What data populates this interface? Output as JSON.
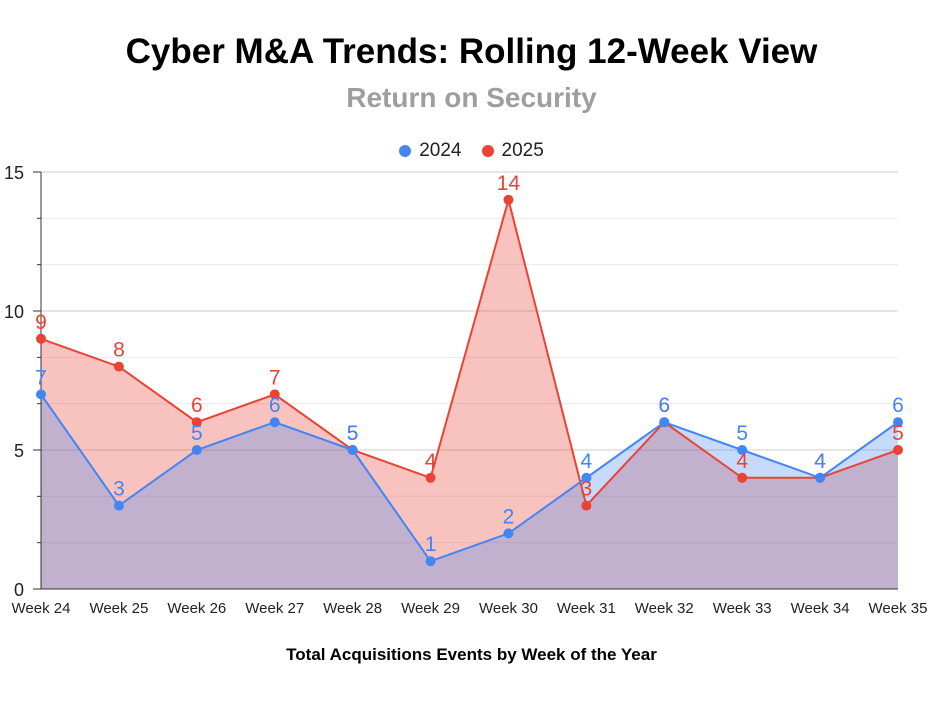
{
  "chart_data": {
    "type": "area",
    "title": "Cyber M&A Trends: Rolling 12-Week View",
    "subtitle": "Return on Security",
    "xlabel": "Total Acquisitions Events by Week of the Year",
    "ylabel": "",
    "categories": [
      "Week 24",
      "Week 25",
      "Week 26",
      "Week 27",
      "Week 28",
      "Week 29",
      "Week 30",
      "Week 31",
      "Week 32",
      "Week 33",
      "Week 34",
      "Week 35"
    ],
    "series": [
      {
        "name": "2024",
        "color": "#4285f4",
        "values": [
          7,
          3,
          5,
          6,
          5,
          1,
          2,
          4,
          6,
          5,
          4,
          6
        ]
      },
      {
        "name": "2025",
        "color": "#ea4335",
        "values": [
          9,
          8,
          6,
          7,
          5,
          4,
          14,
          3,
          6,
          4,
          4,
          5
        ]
      }
    ],
    "ylim": [
      0,
      15
    ],
    "yticks": [
      0,
      5,
      10,
      15
    ],
    "grid": true,
    "legend_position": "top"
  }
}
